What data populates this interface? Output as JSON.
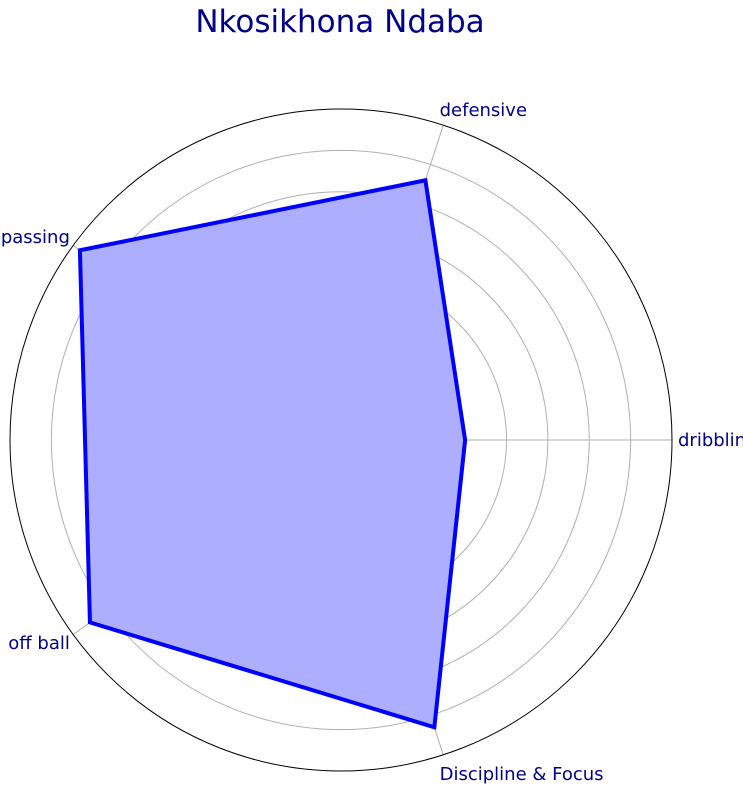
{
  "chart_data": {
    "type": "radar",
    "title": "Nkosikhona Ndaba",
    "categories": [
      "dribbling",
      "defensive",
      "passing",
      "off ball",
      "Discipline & Focus"
    ],
    "series": [
      {
        "values": [
          3.0,
          6.6,
          7.8,
          7.5,
          7.3
        ]
      }
    ],
    "rmax": 8,
    "rings": [
      1,
      2,
      3,
      4,
      5,
      6,
      7
    ],
    "grid": true,
    "colors": {
      "line": "#0000ff",
      "fill": "#adaffe",
      "text": "#00008b",
      "grid": "#b0b0b0",
      "frame": "#000000"
    }
  }
}
